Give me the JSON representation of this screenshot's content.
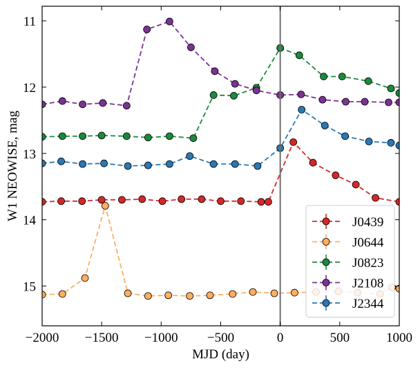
{
  "chart_data": {
    "type": "line",
    "title": "",
    "xlabel": "MJD (day)",
    "ylabel": "W1 NEOWISE, mag",
    "xlim": [
      -2000,
      1000
    ],
    "ylim": [
      15.6,
      10.78
    ],
    "y_inverted": true,
    "xticks": [
      -2000,
      -1500,
      -1000,
      -500,
      0,
      500,
      1000
    ],
    "xtick_labels": [
      "−2000",
      "−1500",
      "−1000",
      "−500",
      "0",
      "500",
      "1000"
    ],
    "yticks": [
      11,
      12,
      13,
      14,
      15
    ],
    "ytick_labels": [
      "11",
      "12",
      "13",
      "14",
      "15"
    ],
    "vline_x": 0,
    "legend_position": "lower-right",
    "series": [
      {
        "name": "J0439",
        "color": "#d62728",
        "x": [
          -2000,
          -1840,
          -1665,
          -1500,
          -1330,
          -1160,
          -990,
          -830,
          -660,
          -500,
          -330,
          -160,
          -100,
          110,
          275,
          465,
          635,
          800,
          1000
        ],
        "y": [
          13.73,
          13.72,
          13.72,
          13.7,
          13.7,
          13.69,
          13.72,
          13.69,
          13.69,
          13.72,
          13.72,
          13.73,
          13.73,
          12.83,
          13.14,
          13.33,
          13.47,
          13.67,
          13.73
        ]
      },
      {
        "name": "J0644",
        "color": "#fdae61",
        "x": [
          -2000,
          -1830,
          -1640,
          -1470,
          -1280,
          -1110,
          -940,
          -760,
          -590,
          -400,
          -230,
          -50,
          120,
          300,
          490,
          650,
          840,
          940,
          1000
        ],
        "y": [
          15.13,
          15.12,
          14.88,
          13.79,
          15.11,
          15.15,
          15.14,
          15.15,
          15.14,
          15.12,
          15.09,
          15.11,
          15.1,
          15.09,
          15.08,
          15.1,
          15.12,
          15.02,
          15.04
        ]
      },
      {
        "name": "J0823",
        "color": "#1b8a3c",
        "x": [
          -2000,
          -1830,
          -1660,
          -1500,
          -1290,
          -1110,
          -930,
          -730,
          -560,
          -390,
          -200,
          0,
          160,
          365,
          520,
          740,
          930,
          1000
        ],
        "y": [
          12.75,
          12.74,
          12.74,
          12.73,
          12.74,
          12.76,
          12.74,
          12.77,
          12.12,
          12.13,
          12.01,
          11.41,
          11.52,
          11.84,
          11.84,
          11.91,
          12.02,
          12.09
        ]
      },
      {
        "name": "J2108",
        "color": "#7b3294",
        "x": [
          -2000,
          -1830,
          -1660,
          -1490,
          -1290,
          -1120,
          -930,
          -750,
          -550,
          -380,
          -200,
          0,
          175,
          355,
          550,
          710,
          910,
          1000
        ],
        "y": [
          12.26,
          12.21,
          12.26,
          12.24,
          12.28,
          11.13,
          11.01,
          11.4,
          11.76,
          11.95,
          12.05,
          12.12,
          12.11,
          12.19,
          12.22,
          12.22,
          12.23,
          12.23
        ]
      },
      {
        "name": "J2344",
        "color": "#2a78b4",
        "x": [
          -2000,
          -1840,
          -1660,
          -1480,
          -1280,
          -1110,
          -930,
          -760,
          -560,
          -380,
          -190,
          0,
          180,
          375,
          545,
          745,
          930,
          1000
        ],
        "y": [
          13.15,
          13.12,
          13.16,
          13.15,
          13.19,
          13.18,
          13.16,
          13.04,
          13.16,
          13.16,
          13.19,
          12.92,
          12.34,
          12.58,
          12.74,
          12.82,
          12.84,
          12.88
        ]
      }
    ]
  }
}
